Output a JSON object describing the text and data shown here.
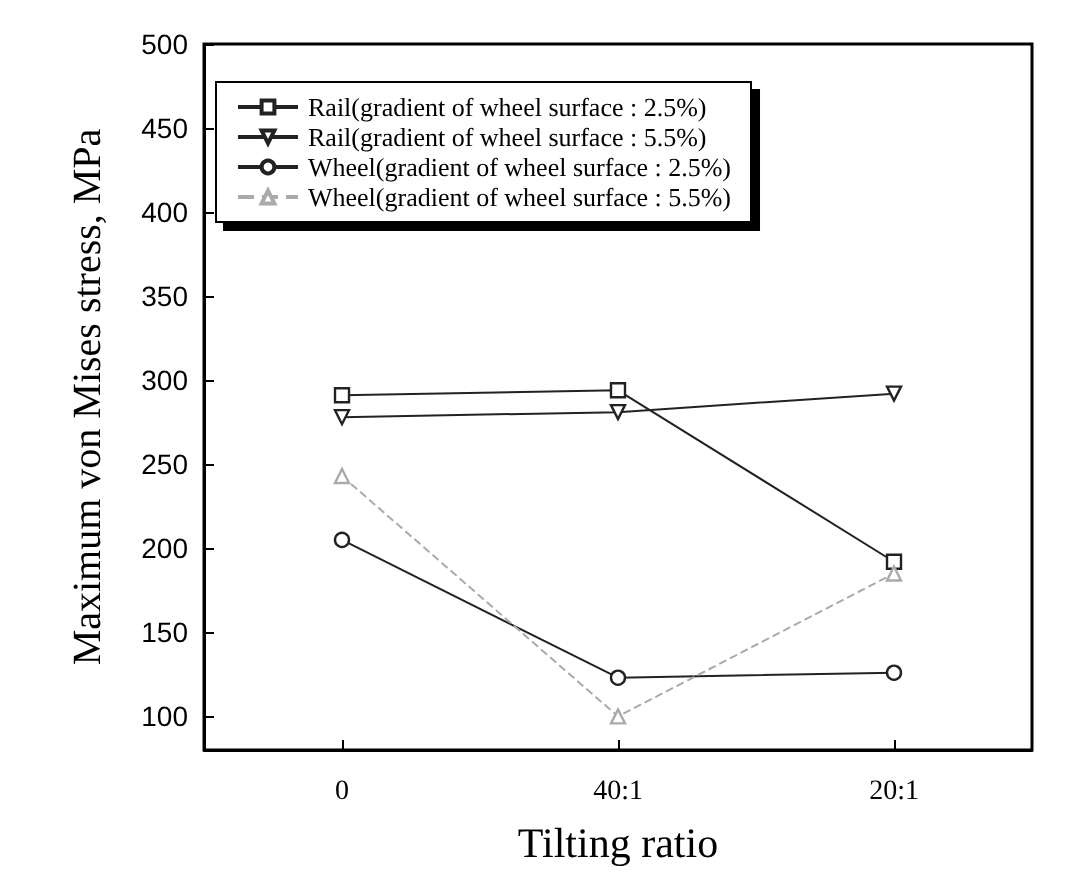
{
  "chart_data": {
    "type": "line",
    "xlabel": "Tilting ratio",
    "ylabel": "Maximum von Mises stress, MPa",
    "categories": [
      "0",
      "40:1",
      "20:1"
    ],
    "ylim": [
      80,
      500
    ],
    "yticks": [
      100,
      150,
      200,
      250,
      300,
      350,
      400,
      450,
      500
    ],
    "grid": false,
    "legend": "top left",
    "series": [
      {
        "name": "Rail(gradient of wheel surface : 2.5%)",
        "color": "#222222",
        "marker": "square",
        "line_style": "solid",
        "values": [
          291,
          294,
          192
        ]
      },
      {
        "name": "Rail(gradient of wheel surface : 5.5%)",
        "color": "#222222",
        "marker": "triangle-down",
        "line_style": "solid",
        "values": [
          278,
          281,
          292
        ]
      },
      {
        "name": "Wheel(gradient of wheel surface : 2.5%)",
        "color": "#222222",
        "marker": "circle",
        "line_style": "solid",
        "values": [
          205,
          123,
          126
        ]
      },
      {
        "name": "Wheel(gradient of wheel surface : 5.5%)",
        "color": "#aaaaaa",
        "marker": "triangle",
        "line_style": "dashed",
        "values": [
          243,
          100,
          185
        ]
      }
    ]
  }
}
